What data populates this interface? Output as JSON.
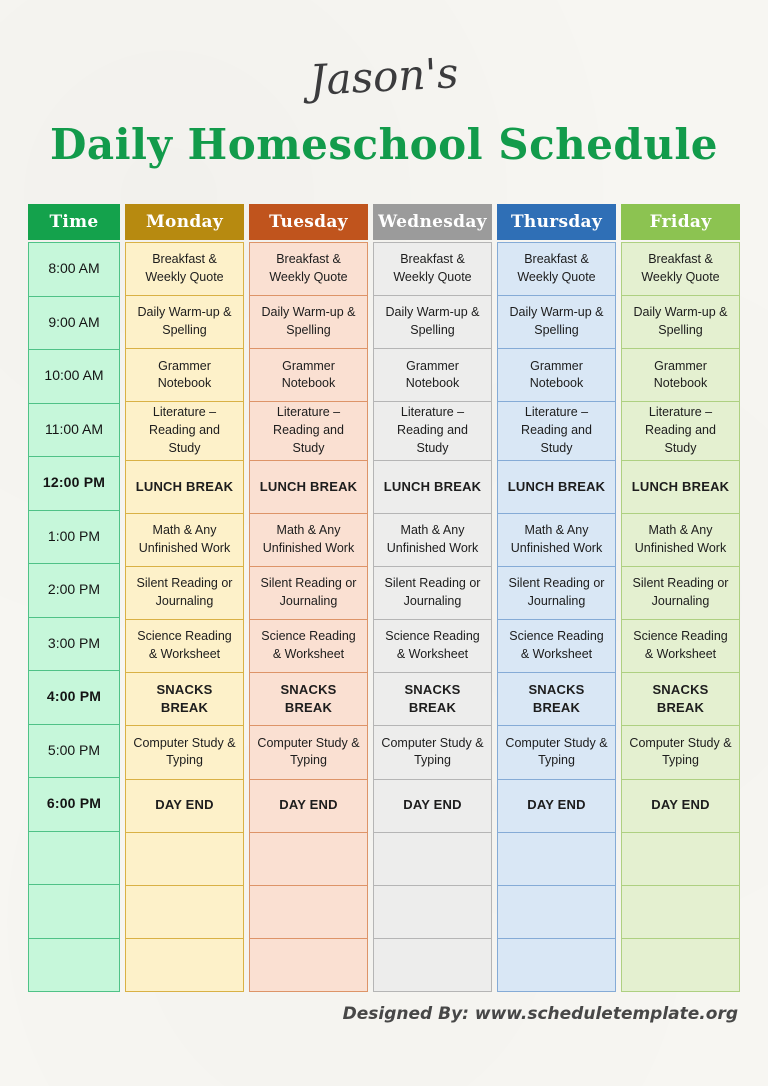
{
  "header": {
    "owner": "Jason's",
    "title": "Daily Homeschool Schedule",
    "title_color": "#129b4b"
  },
  "footer": {
    "credit": "Designed By: www.scheduletemplate.org"
  },
  "schedule": {
    "columns": [
      {
        "id": "time",
        "label": "Time",
        "header_bg": "#14a24c",
        "cell_bg": "#c6f7da",
        "border": "#4fc287"
      },
      {
        "id": "monday",
        "label": "Monday",
        "header_bg": "#b78a10",
        "cell_bg": "#fdf1c9",
        "border": "#d9b145"
      },
      {
        "id": "tuesday",
        "label": "Tuesday",
        "header_bg": "#c0541d",
        "cell_bg": "#fae0d2",
        "border": "#dd9468"
      },
      {
        "id": "wednesday",
        "label": "Wednesday",
        "header_bg": "#9b9b9b",
        "cell_bg": "#ededec",
        "border": "#b5b5b5"
      },
      {
        "id": "thursday",
        "label": "Thursday",
        "header_bg": "#2f6fb6",
        "cell_bg": "#d9e7f5",
        "border": "#85abd6"
      },
      {
        "id": "friday",
        "label": "Friday",
        "header_bg": "#8cc351",
        "cell_bg": "#e4f0d0",
        "border": "#aed081"
      }
    ],
    "rows": [
      {
        "time": "8:00 AM",
        "activity": "Breakfast & Weekly Quote",
        "bold": false
      },
      {
        "time": "9:00 AM",
        "activity": "Daily Warm-up & Spelling",
        "bold": false
      },
      {
        "time": "10:00 AM",
        "activity": "Grammer Notebook",
        "bold": false
      },
      {
        "time": "11:00 AM",
        "activity": "Literature – Reading and Study",
        "bold": false
      },
      {
        "time": "12:00 PM",
        "activity": "LUNCH BREAK",
        "bold": true
      },
      {
        "time": "1:00 PM",
        "activity": "Math & Any Unfinished Work",
        "bold": false
      },
      {
        "time": "2:00 PM",
        "activity": "Silent Reading or Journaling",
        "bold": false
      },
      {
        "time": "3:00 PM",
        "activity": "Science Reading & Worksheet",
        "bold": false
      },
      {
        "time": "4:00 PM",
        "activity": "SNACKS BREAK",
        "bold": true
      },
      {
        "time": "5:00 PM",
        "activity": "Computer Study & Typing",
        "bold": false
      },
      {
        "time": "6:00 PM",
        "activity": "DAY END",
        "bold": true
      },
      {
        "time": "",
        "activity": "",
        "bold": false
      },
      {
        "time": "",
        "activity": "",
        "bold": false
      },
      {
        "time": "",
        "activity": "",
        "bold": false
      }
    ]
  }
}
